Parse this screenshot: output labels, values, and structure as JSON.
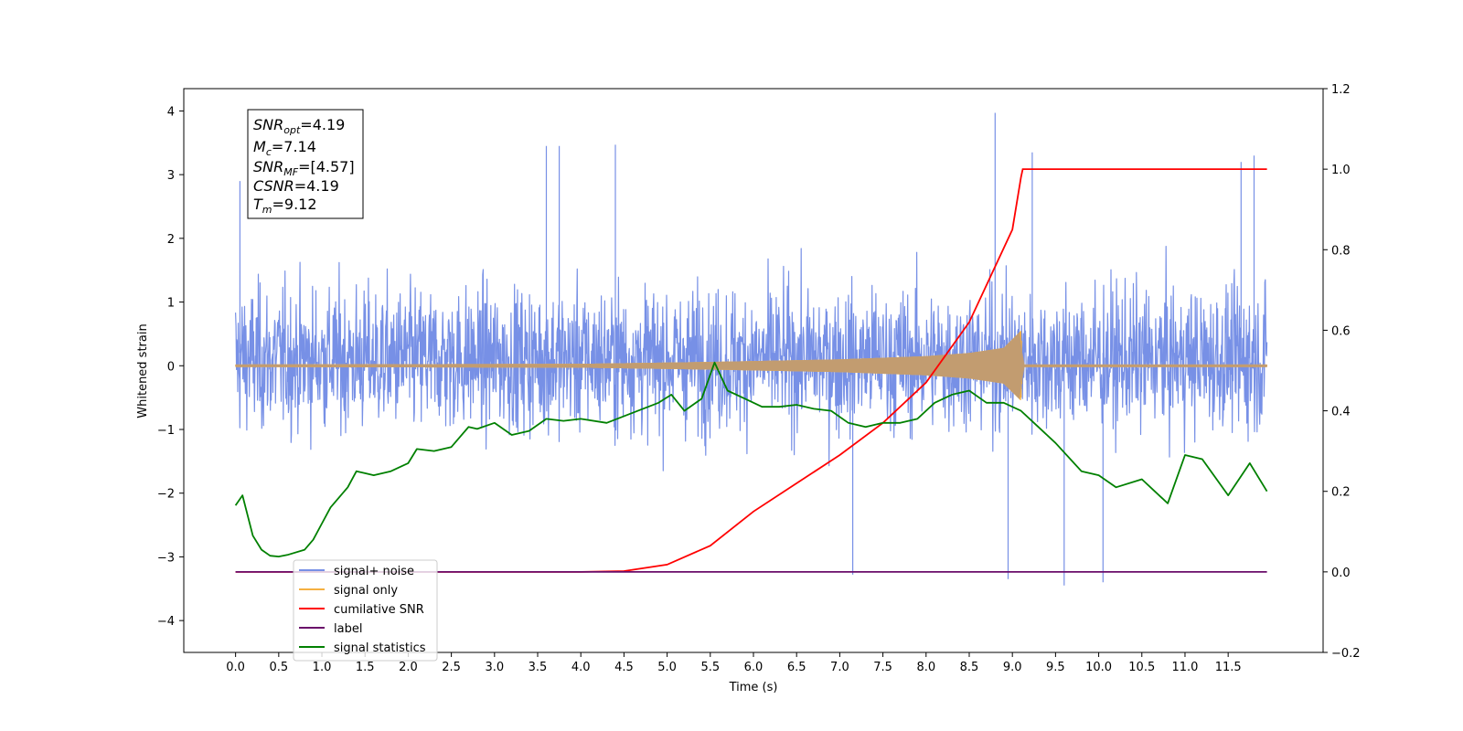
{
  "chart_data": {
    "type": "line",
    "xlabel": "Time (s)",
    "ylabel": "Whitened strain",
    "xlim": [
      -0.6,
      12.6
    ],
    "ylim": [
      -4.5,
      4.35
    ],
    "y2lim": [
      -0.2,
      1.2
    ],
    "grid": false,
    "legend_position": "lower-left",
    "x_ticks": [
      "0.0",
      "0.5",
      "1.0",
      "1.5",
      "2.0",
      "2.5",
      "3.0",
      "3.5",
      "4.0",
      "4.5",
      "5.0",
      "5.5",
      "6.0",
      "6.5",
      "7.0",
      "7.5",
      "8.0",
      "8.5",
      "9.0",
      "9.5",
      "10.0",
      "10.5",
      "11.0",
      "11.5"
    ],
    "y_ticks": [
      "4",
      "3",
      "2",
      "1",
      "0",
      "−1",
      "−2",
      "−3",
      "−4"
    ],
    "y2_ticks": [
      "1.2",
      "1.0",
      "0.8",
      "0.6",
      "0.4",
      "0.2",
      "0.0",
      "−0.2"
    ],
    "info_box": {
      "snr_opt": {
        "base": "SNR",
        "sub": "opt",
        "value": "=4.19"
      },
      "mc": {
        "base": "M",
        "sub": "c",
        "value": "=7.14"
      },
      "snr_mf": {
        "base": "SNR",
        "sub": "MF",
        "value": "=[4.57]"
      },
      "csnr": {
        "base": "CSNR",
        "value": "=4.19"
      },
      "tm": {
        "base": "T",
        "sub": "m",
        "value": "=9.12"
      }
    },
    "series": [
      {
        "name": "signal+ noise",
        "color": "#7790e6",
        "axis": "left",
        "envelope": {
          "t_start": 0.0,
          "t_end": 11.95,
          "typical_low": -1.8,
          "typical_high": 2.0,
          "max": 3.97,
          "min": -3.45
        },
        "spikes": [
          {
            "x": 0.05,
            "y": 2.9
          },
          {
            "x": 3.6,
            "y": 3.45
          },
          {
            "x": 3.75,
            "y": 3.45
          },
          {
            "x": 4.4,
            "y": 3.47
          },
          {
            "x": 8.8,
            "y": 3.97
          },
          {
            "x": 9.23,
            "y": 3.35
          },
          {
            "x": 11.65,
            "y": 3.2
          },
          {
            "x": 11.8,
            "y": 3.3
          },
          {
            "x": 7.15,
            "y": -3.28
          },
          {
            "x": 9.6,
            "y": -3.45
          },
          {
            "x": 10.05,
            "y": -3.4
          },
          {
            "x": 8.95,
            "y": -3.35
          }
        ]
      },
      {
        "name": "signal only",
        "color": "#f5b041",
        "axis": "left",
        "chirp_amplitude": [
          {
            "x": 0.0,
            "y": 0.02
          },
          {
            "x": 4.0,
            "y": 0.03
          },
          {
            "x": 5.5,
            "y": 0.06
          },
          {
            "x": 7.0,
            "y": 0.1
          },
          {
            "x": 8.0,
            "y": 0.15
          },
          {
            "x": 8.5,
            "y": 0.2
          },
          {
            "x": 8.9,
            "y": 0.28
          },
          {
            "x": 9.1,
            "y": 0.55
          },
          {
            "x": 9.12,
            "y": 0.02
          },
          {
            "x": 11.95,
            "y": 0.02
          }
        ]
      },
      {
        "name": "cumilative SNR",
        "color": "#ff0000",
        "axis": "right",
        "x": [
          0.0,
          4.0,
          4.5,
          5.0,
          5.5,
          6.0,
          6.5,
          7.0,
          7.5,
          8.0,
          8.5,
          9.0,
          9.1,
          9.12,
          11.95
        ],
        "y": [
          0.0,
          0.0,
          0.002,
          0.018,
          0.065,
          0.15,
          0.22,
          0.29,
          0.37,
          0.47,
          0.62,
          0.85,
          0.98,
          1.0,
          1.0
        ]
      },
      {
        "name": "label",
        "color": "#6a0d6a",
        "axis": "right",
        "x": [
          0.0,
          11.95
        ],
        "y": [
          0.0,
          0.0
        ]
      },
      {
        "name": "signal statistics",
        "color": "#008000",
        "axis": "right",
        "x": [
          0.0,
          0.08,
          0.2,
          0.3,
          0.4,
          0.5,
          0.6,
          0.8,
          0.9,
          1.0,
          1.1,
          1.3,
          1.4,
          1.5,
          1.6,
          1.8,
          2.0,
          2.1,
          2.3,
          2.5,
          2.7,
          2.8,
          3.0,
          3.2,
          3.4,
          3.6,
          3.8,
          4.0,
          4.3,
          4.6,
          4.9,
          5.05,
          5.2,
          5.4,
          5.55,
          5.7,
          5.9,
          6.1,
          6.3,
          6.5,
          6.7,
          6.9,
          7.1,
          7.3,
          7.5,
          7.7,
          7.9,
          8.1,
          8.3,
          8.5,
          8.7,
          8.9,
          9.1,
          9.3,
          9.5,
          9.8,
          10.0,
          10.2,
          10.5,
          10.8,
          11.0,
          11.2,
          11.5,
          11.75,
          11.95
        ],
        "y": [
          0.165,
          0.19,
          0.09,
          0.055,
          0.04,
          0.038,
          0.042,
          0.055,
          0.08,
          0.12,
          0.16,
          0.21,
          0.25,
          0.245,
          0.24,
          0.25,
          0.27,
          0.305,
          0.3,
          0.31,
          0.36,
          0.355,
          0.37,
          0.34,
          0.35,
          0.38,
          0.375,
          0.38,
          0.37,
          0.395,
          0.42,
          0.44,
          0.4,
          0.43,
          0.52,
          0.45,
          0.43,
          0.41,
          0.41,
          0.415,
          0.405,
          0.4,
          0.37,
          0.36,
          0.37,
          0.37,
          0.38,
          0.42,
          0.44,
          0.45,
          0.42,
          0.42,
          0.4,
          0.36,
          0.32,
          0.25,
          0.24,
          0.21,
          0.23,
          0.17,
          0.29,
          0.28,
          0.19,
          0.27,
          0.2
        ]
      }
    ]
  }
}
